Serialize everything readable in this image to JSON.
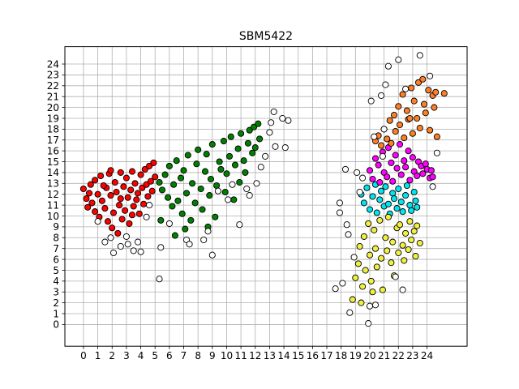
{
  "chart_data": {
    "type": "scatter",
    "title": "SBM5422",
    "xlabel": "",
    "ylabel": "",
    "xlim": [
      -1.3,
      26.8
    ],
    "ylim": [
      -2.0,
      25.6
    ],
    "grid": true,
    "x_ticks": [
      0,
      1,
      2,
      3,
      4,
      5,
      6,
      7,
      8,
      9,
      10,
      11,
      12,
      13,
      14,
      15,
      16,
      17,
      18,
      19,
      20,
      21,
      22,
      23,
      24
    ],
    "y_ticks": [
      0,
      1,
      2,
      3,
      4,
      5,
      6,
      7,
      8,
      9,
      10,
      11,
      12,
      13,
      14,
      15,
      16,
      17,
      18,
      19,
      20,
      21,
      22,
      23,
      24
    ],
    "series": [
      {
        "color": "#ff0000",
        "points": [
          [
            0.0,
            12.5
          ],
          [
            0.2,
            11.6
          ],
          [
            0.3,
            10.8
          ],
          [
            0.5,
            12.9
          ],
          [
            0.6,
            11.2
          ],
          [
            0.8,
            13.3
          ],
          [
            0.8,
            10.4
          ],
          [
            1.0,
            12.0
          ],
          [
            1.1,
            9.9
          ],
          [
            1.2,
            13.7
          ],
          [
            1.3,
            11.4
          ],
          [
            1.5,
            10.7
          ],
          [
            1.6,
            12.6
          ],
          [
            1.7,
            9.5
          ],
          [
            1.8,
            13.9
          ],
          [
            1.9,
            11.9
          ],
          [
            2.0,
            8.9
          ],
          [
            2.1,
            10.3
          ],
          [
            2.2,
            13.1
          ],
          [
            2.3,
            12.2
          ],
          [
            2.4,
            8.4
          ],
          [
            2.5,
            11.0
          ],
          [
            2.6,
            14.0
          ],
          [
            2.7,
            9.7
          ],
          [
            2.8,
            12.7
          ],
          [
            2.9,
            10.5
          ],
          [
            3.0,
            13.5
          ],
          [
            3.1,
            11.7
          ],
          [
            3.2,
            9.3
          ],
          [
            3.3,
            12.4
          ],
          [
            3.4,
            14.1
          ],
          [
            3.5,
            10.9
          ],
          [
            3.6,
            13.0
          ],
          [
            3.7,
            11.5
          ],
          [
            3.8,
            12.1
          ],
          [
            3.9,
            10.2
          ],
          [
            4.0,
            13.8
          ],
          [
            4.1,
            12.6
          ],
          [
            4.2,
            11.1
          ],
          [
            4.3,
            14.3
          ],
          [
            4.4,
            12.9
          ],
          [
            4.5,
            11.8
          ],
          [
            4.6,
            14.6
          ],
          [
            4.7,
            13.2
          ],
          [
            4.8,
            12.3
          ],
          [
            4.9,
            14.9
          ],
          [
            5.0,
            13.6
          ],
          [
            1.4,
            12.8
          ],
          [
            2.6,
            11.6
          ],
          [
            3.4,
            10.1
          ],
          [
            1.9,
            14.2
          ],
          [
            0.4,
            12.1
          ]
        ]
      },
      {
        "color": "#008000",
        "points": [
          [
            5.3,
            13.1
          ],
          [
            5.5,
            12.4
          ],
          [
            5.7,
            13.8
          ],
          [
            5.9,
            11.7
          ],
          [
            6.0,
            14.6
          ],
          [
            6.2,
            10.9
          ],
          [
            6.3,
            12.9
          ],
          [
            6.5,
            15.1
          ],
          [
            6.6,
            11.4
          ],
          [
            6.8,
            13.5
          ],
          [
            6.9,
            10.2
          ],
          [
            7.0,
            14.2
          ],
          [
            7.2,
            12.1
          ],
          [
            7.3,
            15.6
          ],
          [
            7.5,
            9.6
          ],
          [
            7.6,
            13.0
          ],
          [
            7.8,
            11.2
          ],
          [
            7.9,
            14.8
          ],
          [
            8.0,
            16.1
          ],
          [
            8.2,
            12.5
          ],
          [
            8.3,
            10.6
          ],
          [
            8.5,
            14.1
          ],
          [
            8.6,
            15.7
          ],
          [
            8.8,
            11.9
          ],
          [
            8.9,
            13.4
          ],
          [
            9.0,
            16.6
          ],
          [
            9.2,
            9.9
          ],
          [
            9.3,
            12.8
          ],
          [
            9.5,
            15.0
          ],
          [
            9.6,
            14.3
          ],
          [
            9.8,
            16.9
          ],
          [
            9.9,
            12.2
          ],
          [
            10.0,
            13.9
          ],
          [
            10.2,
            15.5
          ],
          [
            10.3,
            17.3
          ],
          [
            10.5,
            11.5
          ],
          [
            10.6,
            14.7
          ],
          [
            10.8,
            16.2
          ],
          [
            10.9,
            13.1
          ],
          [
            11.0,
            17.6
          ],
          [
            11.2,
            15.1
          ],
          [
            11.3,
            14.0
          ],
          [
            11.5,
            16.7
          ],
          [
            11.6,
            17.9
          ],
          [
            11.8,
            15.8
          ],
          [
            11.9,
            18.2
          ],
          [
            12.0,
            16.3
          ],
          [
            12.2,
            18.5
          ],
          [
            12.3,
            17.1
          ],
          [
            6.4,
            8.2
          ],
          [
            7.1,
            8.8
          ],
          [
            5.4,
            9.6
          ],
          [
            8.7,
            9.0
          ]
        ]
      },
      {
        "color": "#00e5ee",
        "points": [
          [
            19.4,
            12.0
          ],
          [
            19.6,
            11.2
          ],
          [
            19.8,
            12.6
          ],
          [
            20.0,
            10.6
          ],
          [
            20.2,
            11.8
          ],
          [
            20.4,
            12.9
          ],
          [
            20.5,
            10.3
          ],
          [
            20.7,
            11.5
          ],
          [
            20.8,
            12.3
          ],
          [
            21.0,
            10.9
          ],
          [
            21.1,
            12.7
          ],
          [
            21.3,
            11.1
          ],
          [
            21.4,
            10.2
          ],
          [
            21.6,
            12.1
          ],
          [
            21.7,
            11.6
          ],
          [
            21.9,
            10.7
          ],
          [
            22.0,
            12.5
          ],
          [
            22.2,
            11.3
          ],
          [
            22.3,
            10.4
          ],
          [
            22.5,
            11.9
          ],
          [
            22.6,
            12.8
          ],
          [
            22.8,
            11.0
          ],
          [
            22.9,
            10.5
          ],
          [
            23.1,
            12.2
          ],
          [
            23.2,
            11.4
          ],
          [
            23.3,
            10.8
          ]
        ]
      },
      {
        "color": "#ff00ff",
        "points": [
          [
            20.0,
            14.2
          ],
          [
            20.2,
            13.4
          ],
          [
            20.4,
            15.3
          ],
          [
            20.6,
            14.7
          ],
          [
            20.7,
            13.1
          ],
          [
            20.9,
            15.9
          ],
          [
            21.0,
            14.0
          ],
          [
            21.2,
            13.6
          ],
          [
            21.3,
            16.3
          ],
          [
            21.5,
            14.9
          ],
          [
            21.6,
            13.2
          ],
          [
            21.8,
            15.6
          ],
          [
            21.9,
            14.4
          ],
          [
            22.1,
            16.6
          ],
          [
            22.2,
            13.8
          ],
          [
            22.4,
            15.1
          ],
          [
            22.5,
            14.5
          ],
          [
            22.7,
            16.0
          ],
          [
            22.8,
            13.3
          ],
          [
            23.0,
            15.4
          ],
          [
            23.1,
            14.1
          ],
          [
            23.3,
            13.7
          ],
          [
            23.4,
            15.0
          ],
          [
            23.6,
            14.6
          ],
          [
            23.7,
            13.9
          ],
          [
            23.9,
            14.8
          ],
          [
            24.0,
            14.3
          ],
          [
            24.2,
            13.5
          ],
          [
            24.3,
            14.2
          ],
          [
            24.4,
            13.6
          ]
        ]
      },
      {
        "color": "#ff7f27",
        "points": [
          [
            20.4,
            16.9
          ],
          [
            20.6,
            17.4
          ],
          [
            20.8,
            16.5
          ],
          [
            21.0,
            18.0
          ],
          [
            21.2,
            17.1
          ],
          [
            21.4,
            18.8
          ],
          [
            21.5,
            16.7
          ],
          [
            21.7,
            19.3
          ],
          [
            21.8,
            17.8
          ],
          [
            22.0,
            20.1
          ],
          [
            22.1,
            18.4
          ],
          [
            22.3,
            21.2
          ],
          [
            22.4,
            17.2
          ],
          [
            22.6,
            19.7
          ],
          [
            22.7,
            18.9
          ],
          [
            22.9,
            21.8
          ],
          [
            23.0,
            17.6
          ],
          [
            23.1,
            20.6
          ],
          [
            23.3,
            19.0
          ],
          [
            23.4,
            22.3
          ],
          [
            23.5,
            18.1
          ],
          [
            23.7,
            22.6
          ],
          [
            23.8,
            20.3
          ],
          [
            23.9,
            19.5
          ],
          [
            24.1,
            21.6
          ],
          [
            24.2,
            17.9
          ],
          [
            24.4,
            21.1
          ],
          [
            24.5,
            20.0
          ],
          [
            24.6,
            21.4
          ],
          [
            24.7,
            17.3
          ],
          [
            25.2,
            21.3
          ],
          [
            22.8,
            19.0
          ]
        ]
      },
      {
        "color": "#f0f040",
        "points": [
          [
            18.8,
            2.3
          ],
          [
            19.0,
            4.3
          ],
          [
            19.2,
            5.6
          ],
          [
            19.3,
            7.2
          ],
          [
            19.5,
            3.5
          ],
          [
            19.6,
            8.1
          ],
          [
            19.7,
            5.0
          ],
          [
            19.9,
            9.3
          ],
          [
            20.0,
            6.4
          ],
          [
            20.1,
            4.0
          ],
          [
            20.3,
            8.7
          ],
          [
            20.4,
            7.0
          ],
          [
            20.5,
            5.3
          ],
          [
            20.7,
            9.6
          ],
          [
            20.8,
            6.1
          ],
          [
            20.9,
            3.2
          ],
          [
            21.1,
            8.0
          ],
          [
            21.2,
            6.8
          ],
          [
            21.3,
            9.9
          ],
          [
            21.5,
            5.7
          ],
          [
            21.6,
            7.6
          ],
          [
            21.7,
            4.5
          ],
          [
            21.9,
            8.9
          ],
          [
            22.0,
            6.6
          ],
          [
            22.1,
            9.2
          ],
          [
            22.3,
            7.3
          ],
          [
            22.4,
            5.9
          ],
          [
            22.5,
            8.4
          ],
          [
            22.7,
            6.9
          ],
          [
            22.8,
            9.5
          ],
          [
            22.9,
            7.8
          ],
          [
            23.1,
            8.6
          ],
          [
            23.2,
            6.3
          ],
          [
            23.3,
            9.1
          ],
          [
            23.5,
            7.5
          ],
          [
            19.4,
            2.0
          ],
          [
            20.2,
            3.0
          ]
        ]
      },
      {
        "color": "#ffffff",
        "points": [
          [
            1.0,
            9.5
          ],
          [
            1.5,
            7.6
          ],
          [
            1.9,
            8.0
          ],
          [
            2.1,
            6.6
          ],
          [
            2.6,
            7.2
          ],
          [
            3.0,
            8.1
          ],
          [
            3.1,
            7.4
          ],
          [
            3.5,
            6.8
          ],
          [
            3.8,
            7.6
          ],
          [
            4.0,
            6.7
          ],
          [
            4.4,
            9.9
          ],
          [
            4.6,
            11.0
          ],
          [
            5.3,
            4.2
          ],
          [
            5.4,
            7.1
          ],
          [
            6.0,
            9.3
          ],
          [
            7.2,
            7.8
          ],
          [
            7.4,
            7.4
          ],
          [
            8.4,
            7.8
          ],
          [
            8.7,
            8.6
          ],
          [
            9.0,
            6.4
          ],
          [
            9.4,
            12.3
          ],
          [
            10.1,
            11.5
          ],
          [
            10.4,
            12.9
          ],
          [
            10.9,
            9.2
          ],
          [
            11.4,
            12.5
          ],
          [
            11.6,
            11.9
          ],
          [
            12.1,
            13.0
          ],
          [
            12.4,
            14.5
          ],
          [
            12.7,
            15.5
          ],
          [
            13.0,
            17.7
          ],
          [
            13.1,
            18.6
          ],
          [
            13.3,
            19.6
          ],
          [
            13.4,
            16.4
          ],
          [
            13.9,
            19.0
          ],
          [
            14.1,
            16.3
          ],
          [
            14.3,
            18.8
          ],
          [
            17.6,
            3.3
          ],
          [
            18.1,
            3.8
          ],
          [
            17.9,
            10.3
          ],
          [
            17.9,
            11.2
          ],
          [
            18.3,
            14.3
          ],
          [
            18.4,
            9.2
          ],
          [
            18.5,
            8.3
          ],
          [
            18.6,
            1.1
          ],
          [
            18.9,
            6.2
          ],
          [
            19.1,
            14.0
          ],
          [
            19.3,
            12.2
          ],
          [
            19.5,
            13.5
          ],
          [
            19.9,
            0.1
          ],
          [
            20.0,
            1.7
          ],
          [
            20.1,
            20.6
          ],
          [
            20.3,
            17.3
          ],
          [
            20.4,
            1.8
          ],
          [
            20.8,
            21.1
          ],
          [
            20.9,
            15.5
          ],
          [
            21.0,
            18.0
          ],
          [
            21.1,
            22.1
          ],
          [
            21.3,
            23.8
          ],
          [
            21.8,
            4.4
          ],
          [
            22.0,
            24.4
          ],
          [
            22.3,
            3.2
          ],
          [
            22.5,
            21.7
          ],
          [
            23.5,
            24.8
          ],
          [
            24.2,
            22.9
          ],
          [
            24.4,
            12.7
          ],
          [
            24.7,
            15.8
          ]
        ]
      }
    ]
  }
}
